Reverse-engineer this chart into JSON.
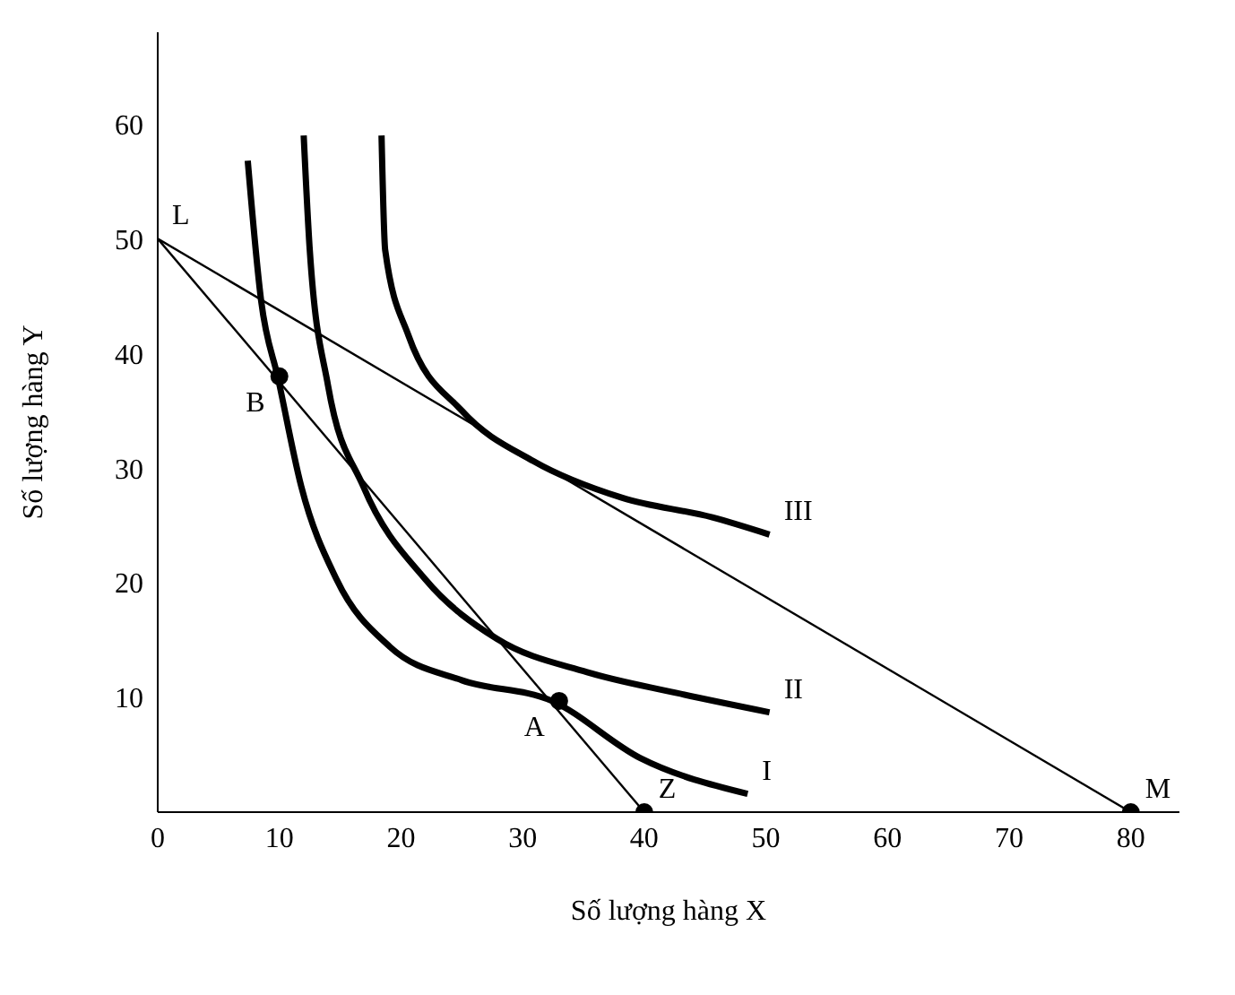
{
  "chart_data": {
    "type": "line",
    "xlabel": "Số lượng hàng X",
    "ylabel": "Số lượng hàng Y",
    "xlim": [
      0,
      84
    ],
    "ylim": [
      0,
      68
    ],
    "xticks": [
      0,
      10,
      20,
      30,
      40,
      50,
      60,
      70,
      80
    ],
    "yticks": [
      10,
      20,
      30,
      40,
      50,
      60
    ],
    "grid": false,
    "marker": "none",
    "line_style": "solid",
    "series": [
      {
        "color": "#000000",
        "x": [
          0,
          80
        ],
        "values": [
          50,
          0
        ]
      },
      {
        "color": "#000000",
        "x": [
          0,
          40
        ],
        "values": [
          50,
          0
        ]
      },
      {
        "color": "#000000",
        "x": [
          7.4,
          8.5,
          9.9,
          11.8,
          14.7,
          19.1,
          25,
          32.4,
          39.7,
          48.5
        ],
        "values": [
          56.8,
          44.6,
          37.8,
          28.4,
          20.3,
          14.4,
          11.5,
          9.7,
          4.7,
          1.6
        ]
      },
      {
        "color": "#000000",
        "x": [
          12,
          12.5,
          14,
          16.9,
          22,
          27.9,
          35.3,
          42.6,
          50.3
        ],
        "values": [
          59,
          49,
          37.2,
          28.4,
          20.3,
          15.1,
          12.2,
          10.4,
          8.7
        ]
      },
      {
        "color": "#000000",
        "x": [
          18.4,
          18.7,
          20.6,
          25,
          30.9,
          38.2,
          45.6,
          50.3
        ],
        "values": [
          59,
          49,
          41.6,
          35,
          30.6,
          27.4,
          25.7,
          24.2
        ]
      },
      {
        "type": "scatter",
        "color": "#000000",
        "marker": "circle",
        "x": [
          10,
          33,
          40,
          80
        ],
        "values": [
          38,
          9.7,
          0,
          0
        ]
      }
    ],
    "annotations": [
      {
        "text": "L",
        "x": 0,
        "y": 50
      },
      {
        "text": "B",
        "x": 10,
        "y": 38
      },
      {
        "text": "A",
        "x": 33,
        "y": 9.7
      },
      {
        "text": "Z",
        "x": 40,
        "y": 0
      },
      {
        "text": "M",
        "x": 80,
        "y": 0
      },
      {
        "text": "I",
        "x": 48.5,
        "y": 1.6
      },
      {
        "text": "II",
        "x": 50.3,
        "y": 8.7
      },
      {
        "text": "III",
        "x": 50.3,
        "y": 24.2
      }
    ]
  }
}
